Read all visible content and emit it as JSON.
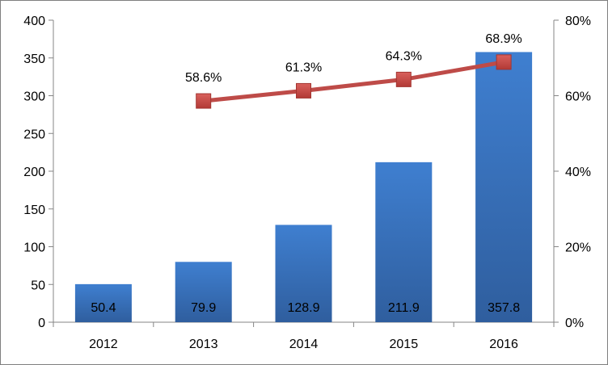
{
  "chart_data": {
    "type": "bar",
    "title": "",
    "xlabel": "",
    "ylabel": "",
    "categories": [
      "2012",
      "2013",
      "2014",
      "2015",
      "2016"
    ],
    "series": [
      {
        "type": "bar",
        "axis": "left",
        "values": [
          50.4,
          79.9,
          128.9,
          211.9,
          357.8
        ],
        "data_labels": [
          "50.4",
          "79.9",
          "128.9",
          "211.9",
          "357.8"
        ],
        "color": "#3c76c4"
      },
      {
        "type": "line",
        "axis": "right",
        "values": [
          null,
          58.6,
          61.3,
          64.3,
          68.9
        ],
        "data_labels": [
          "",
          "58.6%",
          "61.3%",
          "64.3%",
          "68.9%"
        ],
        "color": "#be4b48",
        "marker": "square"
      }
    ],
    "y_left": {
      "ylim": [
        0,
        400
      ],
      "ticks": [
        0,
        50,
        100,
        150,
        200,
        250,
        300,
        350,
        400
      ],
      "tick_labels": [
        "0",
        "50",
        "100",
        "150",
        "200",
        "250",
        "300",
        "350",
        "400"
      ]
    },
    "y_right": {
      "ylim": [
        0,
        80
      ],
      "ticks": [
        0,
        20,
        40,
        60,
        80
      ],
      "tick_labels": [
        "0%",
        "20%",
        "40%",
        "60%",
        "80%"
      ]
    },
    "grid": false,
    "legend": "none"
  }
}
